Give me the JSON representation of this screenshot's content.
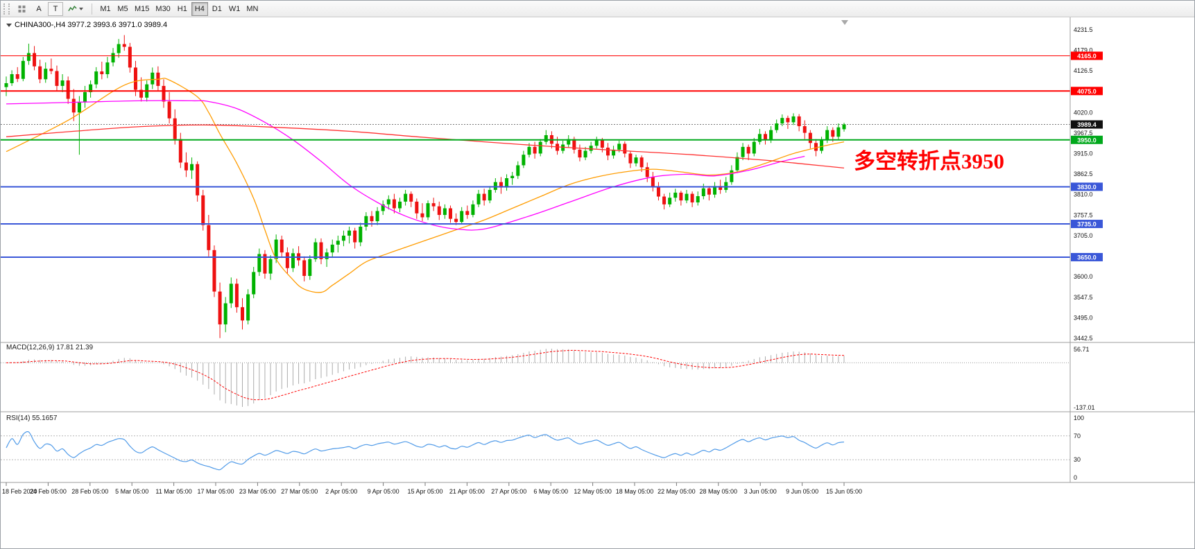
{
  "header": {
    "symbol_line": "CHINA300-,H4  3977.2 3993.6 3971.0 3989.4"
  },
  "toolbar": {
    "tools": [
      {
        "label": "A"
      },
      {
        "label": "T"
      }
    ],
    "timeframes": [
      "M1",
      "M5",
      "M15",
      "M30",
      "H1",
      "H4",
      "D1",
      "W1",
      "MN"
    ],
    "active_timeframe": "H4"
  },
  "annotation": {
    "text": "多空转折点3950",
    "color": "#ff0000"
  },
  "chart_data": {
    "type": "candlestick",
    "symbol": "CHINA300-",
    "timeframe": "H4",
    "current_bar": {
      "open": 3977.2,
      "high": 3993.6,
      "low": 3971.0,
      "close": 3989.4
    },
    "ylim": [
      3442.5,
      4231.5
    ],
    "y_ticks": [
      "4231.5",
      "4179.0",
      "4126.5",
      "4074.0",
      "4020.0",
      "3967.5",
      "3915.0",
      "3862.5",
      "3810.0",
      "3757.5",
      "3705.0",
      "3652.5",
      "3600.0",
      "3547.5",
      "3495.0",
      "3442.5"
    ],
    "x_labels": [
      "18 Feb 2020",
      "24 Feb 05:00",
      "28 Feb 05:00",
      "5 Mar 05:00",
      "11 Mar 05:00",
      "17 Mar 05:00",
      "23 Mar 05:00",
      "27 Mar 05:00",
      "2 Apr 05:00",
      "9 Apr 05:00",
      "15 Apr 05:00",
      "21 Apr 05:00",
      "27 Apr 05:00",
      "6 May 05:00",
      "12 May 05:00",
      "18 May 05:00",
      "22 May 05:00",
      "28 May 05:00",
      "3 Jun 05:00",
      "9 Jun 05:00",
      "15 Jun 05:00"
    ],
    "colors": {
      "up": "#00b200",
      "down": "#ee1111",
      "bid_line": "#777777",
      "macd_hist": "#ababab",
      "macd_signal": "#ff0000",
      "rsi": "#4f9ae8",
      "levels": "#b5b5b5",
      "frame": "#9e9e9e",
      "text": "#111111"
    },
    "candles": [
      [
        4085,
        4112,
        4062,
        4095
      ],
      [
        4095,
        4128,
        4088,
        4118
      ],
      [
        4118,
        4136,
        4098,
        4106
      ],
      [
        4106,
        4162,
        4100,
        4152
      ],
      [
        4152,
        4196,
        4142,
        4172
      ],
      [
        4172,
        4190,
        4128,
        4138
      ],
      [
        4138,
        4155,
        4095,
        4105
      ],
      [
        4105,
        4148,
        4096,
        4132
      ],
      [
        4132,
        4158,
        4118,
        4126
      ],
      [
        4126,
        4140,
        4076,
        4088
      ],
      [
        4088,
        4118,
        4072,
        4102
      ],
      [
        4102,
        4112,
        4042,
        4055
      ],
      [
        4055,
        4080,
        3998,
        4020
      ],
      [
        4020,
        4062,
        3912,
        4046
      ],
      [
        4046,
        4088,
        4032,
        4072
      ],
      [
        4072,
        4102,
        4058,
        4092
      ],
      [
        4092,
        4136,
        4082,
        4125
      ],
      [
        4125,
        4150,
        4105,
        4118
      ],
      [
        4118,
        4162,
        4108,
        4148
      ],
      [
        4148,
        4185,
        4138,
        4172
      ],
      [
        4172,
        4208,
        4160,
        4195
      ],
      [
        4195,
        4218,
        4178,
        4188
      ],
      [
        4188,
        4198,
        4122,
        4135
      ],
      [
        4135,
        4152,
        4062,
        4078
      ],
      [
        4078,
        4110,
        4048,
        4058
      ],
      [
        4058,
        4102,
        4048,
        4092
      ],
      [
        4092,
        4135,
        4080,
        4122
      ],
      [
        4122,
        4138,
        4075,
        4088
      ],
      [
        4088,
        4105,
        4032,
        4048
      ],
      [
        4048,
        4072,
        3992,
        4005
      ],
      [
        4005,
        4028,
        3938,
        3952
      ],
      [
        3952,
        3968,
        3878,
        3892
      ],
      [
        3892,
        3918,
        3855,
        3872
      ],
      [
        3872,
        3905,
        3850,
        3888
      ],
      [
        3888,
        3895,
        3792,
        3808
      ],
      [
        3808,
        3822,
        3718,
        3732
      ],
      [
        3732,
        3758,
        3652,
        3668
      ],
      [
        3668,
        3680,
        3548,
        3562
      ],
      [
        3562,
        3585,
        3443,
        3478
      ],
      [
        3478,
        3548,
        3458,
        3532
      ],
      [
        3532,
        3598,
        3520,
        3582
      ],
      [
        3582,
        3595,
        3508,
        3522
      ],
      [
        3522,
        3545,
        3465,
        3488
      ],
      [
        3488,
        3568,
        3478,
        3555
      ],
      [
        3555,
        3625,
        3545,
        3612
      ],
      [
        3612,
        3672,
        3602,
        3658
      ],
      [
        3658,
        3668,
        3595,
        3608
      ],
      [
        3608,
        3655,
        3592,
        3645
      ],
      [
        3645,
        3708,
        3635,
        3695
      ],
      [
        3695,
        3705,
        3648,
        3662
      ],
      [
        3662,
        3675,
        3608,
        3622
      ],
      [
        3622,
        3672,
        3612,
        3660
      ],
      [
        3660,
        3678,
        3628,
        3642
      ],
      [
        3642,
        3652,
        3588,
        3602
      ],
      [
        3602,
        3655,
        3592,
        3645
      ],
      [
        3645,
        3698,
        3638,
        3688
      ],
      [
        3688,
        3698,
        3632,
        3645
      ],
      [
        3645,
        3672,
        3625,
        3662
      ],
      [
        3662,
        3695,
        3648,
        3682
      ],
      [
        3682,
        3705,
        3662,
        3692
      ],
      [
        3692,
        3718,
        3678,
        3705
      ],
      [
        3705,
        3728,
        3685,
        3718
      ],
      [
        3718,
        3725,
        3672,
        3688
      ],
      [
        3688,
        3738,
        3678,
        3728
      ],
      [
        3728,
        3765,
        3718,
        3755
      ],
      [
        3755,
        3768,
        3728,
        3742
      ],
      [
        3742,
        3778,
        3732,
        3768
      ],
      [
        3768,
        3795,
        3758,
        3785
      ],
      [
        3785,
        3808,
        3772,
        3798
      ],
      [
        3798,
        3812,
        3762,
        3775
      ],
      [
        3775,
        3802,
        3765,
        3792
      ],
      [
        3792,
        3822,
        3782,
        3812
      ],
      [
        3812,
        3818,
        3778,
        3792
      ],
      [
        3792,
        3800,
        3748,
        3762
      ],
      [
        3762,
        3788,
        3742,
        3752
      ],
      [
        3752,
        3795,
        3745,
        3788
      ],
      [
        3788,
        3802,
        3768,
        3780
      ],
      [
        3780,
        3792,
        3745,
        3758
      ],
      [
        3758,
        3785,
        3748,
        3775
      ],
      [
        3775,
        3782,
        3738,
        3748
      ],
      [
        3748,
        3762,
        3732,
        3740
      ],
      [
        3740,
        3778,
        3735,
        3768
      ],
      [
        3768,
        3782,
        3748,
        3758
      ],
      [
        3758,
        3795,
        3752,
        3785
      ],
      [
        3785,
        3822,
        3778,
        3812
      ],
      [
        3812,
        3825,
        3782,
        3795
      ],
      [
        3795,
        3832,
        3788,
        3822
      ],
      [
        3822,
        3852,
        3815,
        3842
      ],
      [
        3842,
        3855,
        3812,
        3828
      ],
      [
        3828,
        3862,
        3820,
        3852
      ],
      [
        3852,
        3868,
        3835,
        3858
      ],
      [
        3858,
        3895,
        3850,
        3885
      ],
      [
        3885,
        3922,
        3878,
        3912
      ],
      [
        3912,
        3942,
        3905,
        3932
      ],
      [
        3932,
        3945,
        3902,
        3915
      ],
      [
        3915,
        3952,
        3908,
        3945
      ],
      [
        3945,
        3975,
        3938,
        3962
      ],
      [
        3962,
        3972,
        3928,
        3940
      ],
      [
        3940,
        3958,
        3912,
        3922
      ],
      [
        3922,
        3948,
        3915,
        3938
      ],
      [
        3938,
        3962,
        3930,
        3952
      ],
      [
        3952,
        3958,
        3915,
        3925
      ],
      [
        3925,
        3938,
        3895,
        3905
      ],
      [
        3905,
        3932,
        3898,
        3922
      ],
      [
        3922,
        3945,
        3915,
        3935
      ],
      [
        3935,
        3958,
        3928,
        3950
      ],
      [
        3950,
        3955,
        3918,
        3930
      ],
      [
        3930,
        3942,
        3898,
        3910
      ],
      [
        3910,
        3935,
        3902,
        3925
      ],
      [
        3925,
        3948,
        3918,
        3940
      ],
      [
        3940,
        3946,
        3905,
        3915
      ],
      [
        3915,
        3922,
        3878,
        3890
      ],
      [
        3890,
        3912,
        3882,
        3905
      ],
      [
        3905,
        3910,
        3868,
        3880
      ],
      [
        3880,
        3892,
        3842,
        3855
      ],
      [
        3855,
        3868,
        3818,
        3830
      ],
      [
        3830,
        3842,
        3795,
        3805
      ],
      [
        3805,
        3812,
        3772,
        3785
      ],
      [
        3785,
        3815,
        3778,
        3802
      ],
      [
        3802,
        3825,
        3792,
        3815
      ],
      [
        3815,
        3820,
        3782,
        3795
      ],
      [
        3795,
        3822,
        3788,
        3812
      ],
      [
        3812,
        3818,
        3778,
        3790
      ],
      [
        3790,
        3818,
        3782,
        3806
      ],
      [
        3806,
        3838,
        3798,
        3826
      ],
      [
        3826,
        3832,
        3795,
        3810
      ],
      [
        3810,
        3842,
        3802,
        3832
      ],
      [
        3832,
        3848,
        3812,
        3822
      ],
      [
        3822,
        3855,
        3815,
        3842
      ],
      [
        3842,
        3885,
        3835,
        3872
      ],
      [
        3872,
        3918,
        3865,
        3906
      ],
      [
        3906,
        3942,
        3898,
        3932
      ],
      [
        3932,
        3938,
        3898,
        3915
      ],
      [
        3915,
        3955,
        3908,
        3945
      ],
      [
        3945,
        3978,
        3938,
        3965
      ],
      [
        3965,
        3972,
        3938,
        3950
      ],
      [
        3950,
        3985,
        3942,
        3975
      ],
      [
        3975,
        4002,
        3968,
        3992
      ],
      [
        3992,
        4015,
        3985,
        4006
      ],
      [
        4006,
        4012,
        3978,
        3995
      ],
      [
        3995,
        4018,
        3988,
        4010
      ],
      [
        4010,
        4016,
        3972,
        3985
      ],
      [
        3985,
        4000,
        3952,
        3968
      ],
      [
        3968,
        3975,
        3928,
        3942
      ],
      [
        3942,
        3952,
        3908,
        3922
      ],
      [
        3922,
        3958,
        3915,
        3950
      ],
      [
        3950,
        3985,
        3942,
        3975
      ],
      [
        3975,
        3982,
        3945,
        3958
      ],
      [
        3958,
        3992,
        3950,
        3982
      ],
      [
        3977.2,
        3993.6,
        3971,
        3989.4
      ]
    ],
    "hlines": [
      {
        "price": 4165.0,
        "label": "4165.0",
        "color": "#ff0000",
        "width": 1
      },
      {
        "price": 4075.0,
        "label": "4075.0",
        "color": "#ff0000",
        "width": 2
      },
      {
        "price": 3950.0,
        "label": "3950.0",
        "color": "#00a81b",
        "width": 2
      },
      {
        "price": 3830.0,
        "label": "3830.0",
        "color": "#3a57d8",
        "width": 2
      },
      {
        "price": 3735.0,
        "label": "3735.0",
        "color": "#3a57d8",
        "width": 2
      },
      {
        "price": 3650.0,
        "label": "3650.0",
        "color": "#3a57d8",
        "width": 2
      }
    ],
    "bid": {
      "price": 3989.4,
      "label": "3989.4",
      "badge_bg": "#111111"
    },
    "moving_averages": [
      {
        "name": "ma-medium-orange",
        "color": "#ff9c00",
        "points": [
          [
            0,
            3920
          ],
          [
            11,
            4000
          ],
          [
            21,
            4090
          ],
          [
            27,
            4105
          ],
          [
            29,
            4103
          ],
          [
            34,
            4060
          ],
          [
            36,
            4020
          ],
          [
            38,
            3965
          ],
          [
            41,
            3890
          ],
          [
            44,
            3800
          ],
          [
            46,
            3720
          ],
          [
            48,
            3645
          ],
          [
            51,
            3592
          ],
          [
            53,
            3568
          ],
          [
            56,
            3560
          ],
          [
            58,
            3578
          ],
          [
            61,
            3608
          ],
          [
            64,
            3638
          ],
          [
            68,
            3660
          ],
          [
            72,
            3680
          ],
          [
            76,
            3700
          ],
          [
            80,
            3720
          ],
          [
            85,
            3745
          ],
          [
            90,
            3775
          ],
          [
            95,
            3805
          ],
          [
            100,
            3835
          ],
          [
            105,
            3855
          ],
          [
            110,
            3868
          ],
          [
            115,
            3875
          ],
          [
            120,
            3868
          ],
          [
            125,
            3860
          ],
          [
            130,
            3868
          ],
          [
            135,
            3890
          ],
          [
            140,
            3915
          ],
          [
            145,
            3933
          ],
          [
            149,
            3945
          ]
        ]
      },
      {
        "name": "ma-slow-magenta",
        "color": "#ff00ff",
        "points": [
          [
            0,
            4042
          ],
          [
            12,
            4046
          ],
          [
            24,
            4050
          ],
          [
            33,
            4050
          ],
          [
            36,
            4048
          ],
          [
            41,
            4030
          ],
          [
            46,
            3995
          ],
          [
            51,
            3950
          ],
          [
            56,
            3895
          ],
          [
            61,
            3835
          ],
          [
            66,
            3790
          ],
          [
            71,
            3755
          ],
          [
            76,
            3732
          ],
          [
            80,
            3722
          ],
          [
            85,
            3722
          ],
          [
            93,
            3755
          ],
          [
            100,
            3790
          ],
          [
            108,
            3830
          ],
          [
            115,
            3855
          ],
          [
            121,
            3862
          ],
          [
            126,
            3858
          ],
          [
            132,
            3872
          ],
          [
            138,
            3895
          ],
          [
            142,
            3908
          ]
        ]
      },
      {
        "name": "ma-long-red",
        "color": "#ff3030",
        "points": [
          [
            0,
            3958
          ],
          [
            12,
            3972
          ],
          [
            24,
            3984
          ],
          [
            36,
            3988
          ],
          [
            48,
            3982
          ],
          [
            61,
            3972
          ],
          [
            73,
            3958
          ],
          [
            85,
            3945
          ],
          [
            98,
            3932
          ],
          [
            110,
            3922
          ],
          [
            122,
            3912
          ],
          [
            135,
            3898
          ],
          [
            142,
            3888
          ],
          [
            149,
            3878
          ]
        ]
      }
    ],
    "macd": {
      "label": "MACD(12,26,9) 17.81 21.39",
      "params": [
        12,
        26,
        9
      ],
      "scale_ticks": [
        "56.71",
        "-137.01"
      ]
    },
    "rsi": {
      "label": "RSI(14) 55.1657",
      "period": 14,
      "value": 55.1657,
      "levels": [
        70,
        30
      ],
      "scale_ticks": [
        {
          "v": 100,
          "label": "100"
        },
        {
          "v": 70,
          "label": "70"
        },
        {
          "v": 30,
          "label": "30"
        },
        {
          "v": 0,
          "label": "0"
        }
      ]
    }
  }
}
